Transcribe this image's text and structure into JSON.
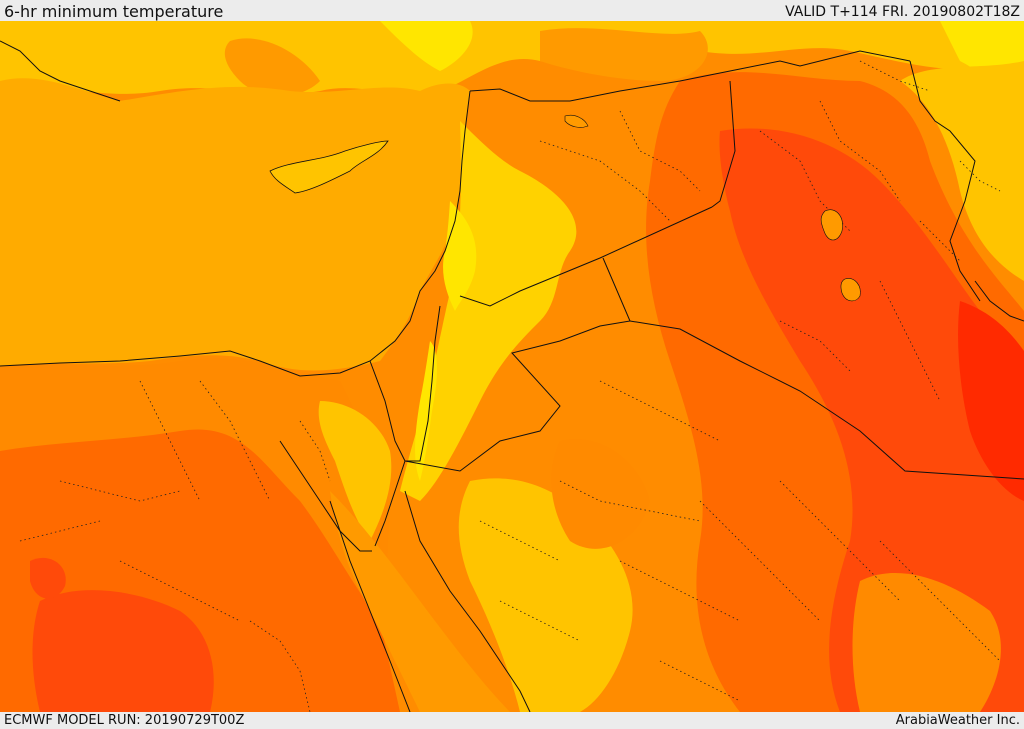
{
  "header": {
    "title": "6-hr minimum temperature",
    "valid_time": "VALID T+114 FRI. 20190802T18Z"
  },
  "footer": {
    "model_run": "ECMWF MODEL RUN: 20190729T00Z",
    "credit": "ArabiaWeather Inc."
  },
  "colors": {
    "sea": "#ffab00",
    "light_yellow": "#ffe600",
    "yellow": "#ffcc00",
    "light_orange": "#ff9a00",
    "orange": "#ff8a00",
    "dark_orange": "#ff6a00",
    "red_orange": "#ff4a0a",
    "red": "#ff2a00",
    "border": "#111111"
  }
}
